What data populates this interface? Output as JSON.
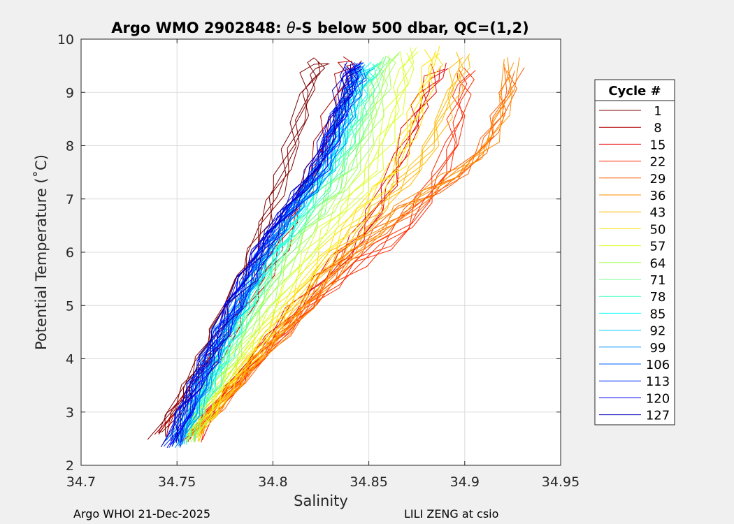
{
  "chart_data": {
    "type": "line",
    "title_prefix": "Argo WMO 2902848: ",
    "title_theta": "θ",
    "title_suffix": "-S below 500 dbar,  QC=(1,2)",
    "xlabel": "Salinity",
    "ylabel": "Potential Temperature (˚C)",
    "xlim": [
      34.7,
      34.95
    ],
    "ylim": [
      2,
      10
    ],
    "xticks": [
      "34.7",
      "34.75",
      "34.8",
      "34.85",
      "34.9",
      "34.95"
    ],
    "yticks": [
      "2",
      "3",
      "4",
      "5",
      "6",
      "7",
      "8",
      "9",
      "10"
    ],
    "grid": true,
    "legend": {
      "title": "Cycle #",
      "placement": "outside-right",
      "entries": [
        "1",
        "8",
        "15",
        "22",
        "29",
        "36",
        "43",
        "50",
        "57",
        "64",
        "71",
        "78",
        "85",
        "92",
        "99",
        "106",
        "113",
        "120",
        "127"
      ],
      "colors": [
        "#800000",
        "#b40000",
        "#e60000",
        "#ff2a00",
        "#ff5a00",
        "#ff8c00",
        "#ffb900",
        "#ffe500",
        "#d9ff26",
        "#a6ff59",
        "#73ff8c",
        "#40ffbf",
        "#0dfff2",
        "#00c6ff",
        "#0094ff",
        "#0062ff",
        "#0030ff",
        "#0000ff",
        "#0000b5"
      ]
    },
    "series_note": "Approximate theta-S profiles (salinity, potential temperature) per cycle group",
    "series": [
      {
        "name": "1",
        "color": "#800000",
        "s": [
          34.74,
          34.748,
          34.756,
          34.763,
          34.77,
          34.777,
          34.784,
          34.79,
          34.796,
          34.801,
          34.806,
          34.81,
          34.814,
          34.817,
          34.82,
          34.823,
          34.825
        ],
        "t": [
          2.55,
          3.0,
          3.5,
          4.0,
          4.5,
          5.0,
          5.5,
          6.0,
          6.5,
          7.0,
          7.5,
          8.0,
          8.5,
          9.0,
          9.3,
          9.5,
          9.6
        ]
      },
      {
        "name": "8",
        "color": "#b40000",
        "s": [
          34.743,
          34.752,
          34.761,
          34.77,
          34.779,
          34.787,
          34.795,
          34.803,
          34.81,
          34.816,
          34.822,
          34.827,
          34.831,
          34.835,
          34.838,
          34.84,
          34.842
        ],
        "t": [
          2.6,
          3.1,
          3.6,
          4.1,
          4.6,
          5.1,
          5.6,
          6.1,
          6.6,
          7.1,
          7.6,
          8.1,
          8.6,
          9.0,
          9.3,
          9.5,
          9.6
        ]
      },
      {
        "name": "15",
        "color": "#e60000",
        "s": [
          34.757,
          34.768,
          34.779,
          34.79,
          34.801,
          34.812,
          34.824,
          34.836,
          34.846,
          34.854,
          34.861,
          34.867,
          34.872,
          34.876,
          34.88,
          34.884,
          34.888
        ],
        "t": [
          2.5,
          3.0,
          3.5,
          4.0,
          4.5,
          5.0,
          5.5,
          5.9,
          6.3,
          6.8,
          7.3,
          7.8,
          8.3,
          8.7,
          9.0,
          9.3,
          9.5
        ]
      },
      {
        "name": "22",
        "color": "#ff2a00",
        "s": [
          34.757,
          34.768,
          34.78,
          34.792,
          34.805,
          34.818,
          34.831,
          34.845,
          34.858,
          34.87,
          34.88,
          34.888,
          34.893,
          34.896,
          34.898,
          34.899,
          34.9
        ],
        "t": [
          2.5,
          3.0,
          3.5,
          4.0,
          4.5,
          5.0,
          5.4,
          5.8,
          6.1,
          6.5,
          7.0,
          7.5,
          8.0,
          8.5,
          8.9,
          9.2,
          9.4
        ]
      },
      {
        "name": "29",
        "color": "#ff5a00",
        "s": [
          34.758,
          34.77,
          34.782,
          34.794,
          34.806,
          34.818,
          34.83,
          34.842,
          34.856,
          34.87,
          34.884,
          34.896,
          34.906,
          34.913,
          34.918,
          34.922,
          34.925
        ],
        "t": [
          2.5,
          3.0,
          3.5,
          4.0,
          4.5,
          5.0,
          5.5,
          6.0,
          6.4,
          6.8,
          7.1,
          7.4,
          7.8,
          8.2,
          8.6,
          9.0,
          9.4
        ]
      },
      {
        "name": "36",
        "color": "#ff8c00",
        "s": [
          34.758,
          34.769,
          34.781,
          34.793,
          34.805,
          34.817,
          34.829,
          34.841,
          34.854,
          34.867,
          34.88,
          34.892,
          34.903,
          34.912,
          34.918,
          34.922,
          34.924
        ],
        "t": [
          2.5,
          3.0,
          3.5,
          4.0,
          4.5,
          5.0,
          5.5,
          6.0,
          6.4,
          6.8,
          7.1,
          7.4,
          7.7,
          8.0,
          8.5,
          9.0,
          9.6
        ]
      },
      {
        "name": "43",
        "color": "#ffb900",
        "s": [
          34.758,
          34.768,
          34.779,
          34.79,
          34.801,
          34.812,
          34.823,
          34.834,
          34.845,
          34.856,
          34.866,
          34.875,
          34.882,
          34.888,
          34.893,
          34.897,
          34.9
        ],
        "t": [
          2.5,
          3.0,
          3.5,
          4.0,
          4.5,
          5.0,
          5.5,
          6.0,
          6.4,
          6.8,
          7.2,
          7.6,
          8.0,
          8.5,
          9.0,
          9.4,
          9.7
        ]
      },
      {
        "name": "50",
        "color": "#ffe500",
        "s": [
          34.757,
          34.767,
          34.777,
          34.787,
          34.797,
          34.807,
          34.817,
          34.827,
          34.837,
          34.847,
          34.856,
          34.864,
          34.87,
          34.875,
          34.879,
          34.883,
          34.885
        ],
        "t": [
          2.5,
          3.0,
          3.5,
          4.0,
          4.5,
          5.0,
          5.5,
          6.0,
          6.4,
          6.8,
          7.2,
          7.6,
          8.1,
          8.6,
          9.1,
          9.5,
          9.8
        ]
      },
      {
        "name": "57",
        "color": "#d9ff26",
        "s": [
          34.756,
          34.765,
          34.774,
          34.783,
          34.792,
          34.801,
          34.81,
          34.819,
          34.828,
          34.837,
          34.845,
          34.852,
          34.858,
          34.863,
          34.867,
          34.87,
          34.872
        ],
        "t": [
          2.5,
          3.0,
          3.5,
          4.0,
          4.5,
          5.0,
          5.5,
          6.0,
          6.4,
          6.8,
          7.2,
          7.6,
          8.1,
          8.6,
          9.1,
          9.5,
          9.8
        ]
      },
      {
        "name": "64",
        "color": "#a6ff59",
        "s": [
          34.755,
          34.763,
          34.771,
          34.779,
          34.787,
          34.795,
          34.803,
          34.811,
          34.819,
          34.827,
          34.835,
          34.842,
          34.848,
          34.853,
          34.857,
          34.86,
          34.862
        ],
        "t": [
          2.5,
          3.0,
          3.5,
          4.0,
          4.5,
          5.0,
          5.5,
          6.0,
          6.4,
          6.8,
          7.2,
          7.6,
          8.1,
          8.6,
          9.1,
          9.5,
          9.7
        ]
      },
      {
        "name": "71",
        "color": "#73ff8c",
        "s": [
          34.754,
          34.761,
          34.768,
          34.775,
          34.782,
          34.79,
          34.798,
          34.806,
          34.814,
          34.822,
          34.83,
          34.837,
          34.843,
          34.848,
          34.852,
          34.855,
          34.857
        ],
        "t": [
          2.5,
          3.0,
          3.5,
          4.0,
          4.5,
          5.0,
          5.5,
          6.0,
          6.4,
          6.8,
          7.2,
          7.6,
          8.1,
          8.6,
          9.1,
          9.4,
          9.6
        ]
      },
      {
        "name": "78",
        "color": "#40ffbf",
        "s": [
          34.753,
          34.76,
          34.767,
          34.774,
          34.781,
          34.788,
          34.795,
          34.802,
          34.81,
          34.818,
          34.826,
          34.833,
          34.839,
          34.844,
          34.848,
          34.851,
          34.853
        ],
        "t": [
          2.45,
          3.0,
          3.5,
          4.0,
          4.5,
          5.0,
          5.5,
          6.0,
          6.4,
          6.8,
          7.2,
          7.6,
          8.1,
          8.6,
          9.0,
          9.3,
          9.5
        ]
      },
      {
        "name": "85",
        "color": "#0dfff2",
        "s": [
          34.752,
          34.759,
          34.766,
          34.772,
          34.778,
          34.785,
          34.792,
          34.799,
          34.806,
          34.814,
          34.822,
          34.829,
          34.835,
          34.84,
          34.844,
          34.847,
          34.849
        ],
        "t": [
          2.45,
          3.0,
          3.5,
          4.0,
          4.5,
          5.0,
          5.5,
          5.9,
          6.3,
          6.8,
          7.2,
          7.6,
          8.1,
          8.6,
          9.0,
          9.3,
          9.5
        ]
      },
      {
        "name": "92",
        "color": "#00c6ff",
        "s": [
          34.751,
          34.758,
          34.764,
          34.77,
          34.776,
          34.783,
          34.79,
          34.797,
          34.804,
          34.812,
          34.82,
          34.827,
          34.833,
          34.838,
          34.842,
          34.845,
          34.847
        ],
        "t": [
          2.45,
          3.0,
          3.5,
          4.0,
          4.5,
          5.0,
          5.5,
          6.0,
          6.4,
          6.8,
          7.2,
          7.6,
          8.1,
          8.6,
          9.0,
          9.3,
          9.5
        ]
      },
      {
        "name": "99",
        "color": "#0094ff",
        "s": [
          34.75,
          34.757,
          34.763,
          34.769,
          34.775,
          34.782,
          34.789,
          34.796,
          34.803,
          34.811,
          34.819,
          34.826,
          34.832,
          34.837,
          34.841,
          34.844,
          34.846
        ],
        "t": [
          2.4,
          3.0,
          3.5,
          4.0,
          4.5,
          5.0,
          5.5,
          6.0,
          6.4,
          6.8,
          7.2,
          7.6,
          8.1,
          8.6,
          9.0,
          9.3,
          9.5
        ]
      },
      {
        "name": "106",
        "color": "#0062ff",
        "s": [
          34.749,
          34.756,
          34.762,
          34.768,
          34.774,
          34.781,
          34.788,
          34.795,
          34.802,
          34.81,
          34.818,
          34.825,
          34.831,
          34.836,
          34.84,
          34.843,
          34.845
        ],
        "t": [
          2.4,
          3.0,
          3.5,
          4.0,
          4.5,
          5.0,
          5.5,
          6.0,
          6.4,
          6.8,
          7.2,
          7.6,
          8.1,
          8.6,
          9.0,
          9.3,
          9.5
        ]
      },
      {
        "name": "113",
        "color": "#0030ff",
        "s": [
          34.748,
          34.755,
          34.761,
          34.767,
          34.773,
          34.78,
          34.787,
          34.794,
          34.801,
          34.809,
          34.817,
          34.824,
          34.83,
          34.835,
          34.839,
          34.842,
          34.844
        ],
        "t": [
          2.4,
          3.0,
          3.5,
          4.0,
          4.5,
          5.0,
          5.5,
          6.0,
          6.4,
          6.8,
          7.2,
          7.6,
          8.1,
          8.6,
          9.0,
          9.3,
          9.5
        ]
      },
      {
        "name": "120",
        "color": "#0000ff",
        "s": [
          34.747,
          34.754,
          34.76,
          34.766,
          34.772,
          34.779,
          34.786,
          34.793,
          34.8,
          34.808,
          34.816,
          34.823,
          34.829,
          34.834,
          34.838,
          34.841,
          34.843
        ],
        "t": [
          2.4,
          3.0,
          3.5,
          4.0,
          4.5,
          5.0,
          5.5,
          6.0,
          6.4,
          6.8,
          7.2,
          7.6,
          8.1,
          8.6,
          9.0,
          9.3,
          9.5
        ]
      },
      {
        "name": "127",
        "color": "#0000b5",
        "s": [
          34.747,
          34.753,
          34.759,
          34.765,
          34.771,
          34.778,
          34.785,
          34.792,
          34.799,
          34.807,
          34.815,
          34.822,
          34.828,
          34.833,
          34.837,
          34.84,
          34.842
        ],
        "t": [
          2.4,
          3.0,
          3.5,
          4.0,
          4.5,
          5.0,
          5.5,
          6.0,
          6.4,
          6.8,
          7.2,
          7.6,
          8.1,
          8.6,
          9.0,
          9.3,
          9.5
        ]
      }
    ]
  },
  "footer": {
    "left": "Argo WHOI 21-Dec-2025",
    "right": "LILI ZENG at csio"
  }
}
